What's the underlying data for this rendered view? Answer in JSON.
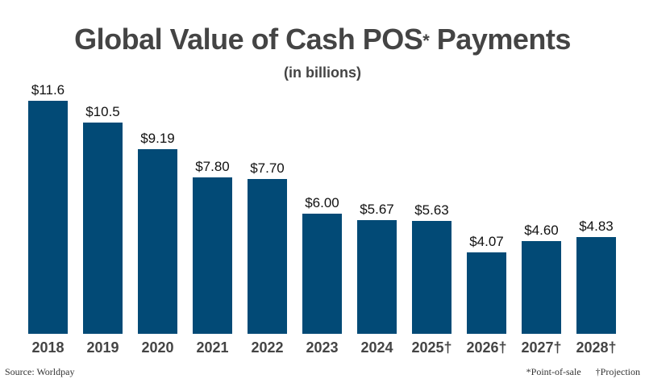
{
  "title": {
    "main": "Global Value of Cash POS",
    "asterisk": "*",
    "tail": " Payments"
  },
  "subtitle": "(in billions)",
  "footer": {
    "source": "Source: Worldpay",
    "note1": "*Point-of-sale",
    "note2": "†Projection"
  },
  "colors": {
    "bar": "#024a76",
    "title": "#444444"
  },
  "chart_data": {
    "type": "bar",
    "title": "Global Value of Cash POS* Payments",
    "subtitle": "(in billions)",
    "categories": [
      "2018",
      "2019",
      "2020",
      "2021",
      "2022",
      "2023",
      "2024",
      "2025†",
      "2026†",
      "2027†",
      "2028†"
    ],
    "values": [
      11.6,
      10.5,
      9.19,
      7.8,
      7.7,
      6.0,
      5.67,
      5.63,
      4.07,
      4.6,
      4.83
    ],
    "labels": [
      "$11.6",
      "$10.5",
      "$9.19",
      "$7.80",
      "$7.70",
      "$6.00",
      "$5.67",
      "$5.63",
      "$4.07",
      "$4.60",
      "$4.83"
    ],
    "xlabel": "",
    "ylabel": "",
    "ylim": [
      0,
      11.6
    ],
    "grid": false,
    "legend": "none",
    "annotations": [
      "*Point-of-sale",
      "†Projection",
      "Source: Worldpay"
    ]
  }
}
